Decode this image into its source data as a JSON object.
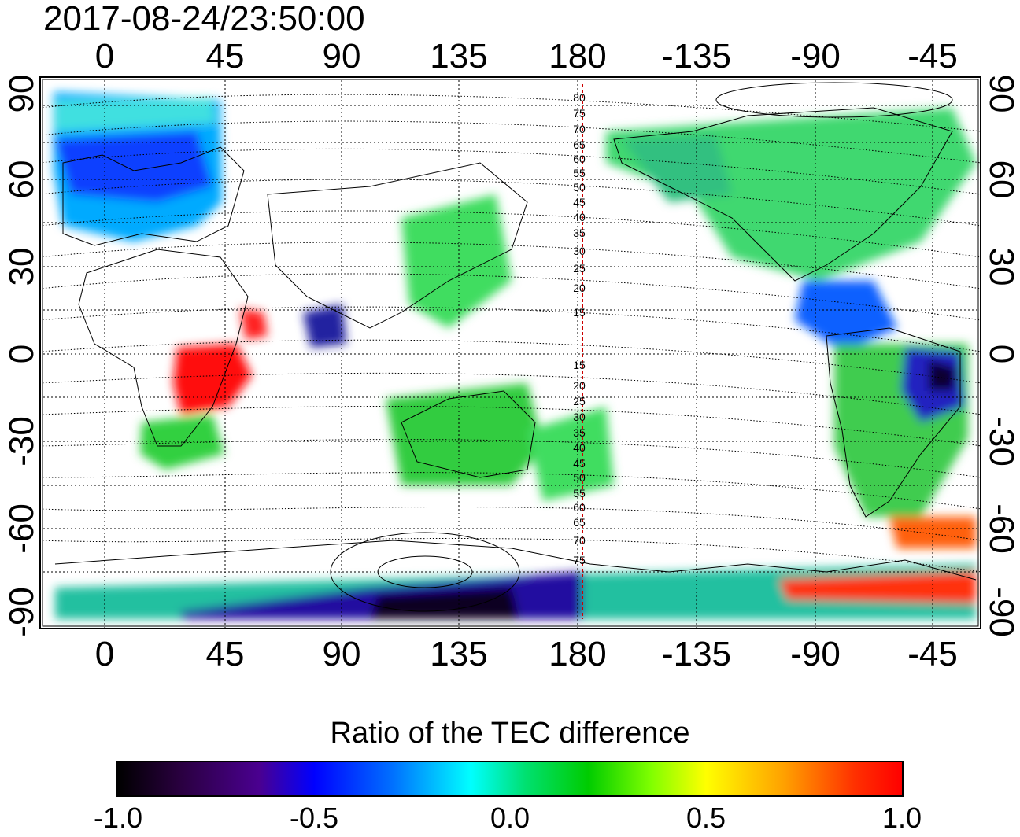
{
  "timestamp": "2017-08-24/23:50:00",
  "map": {
    "lon_ticks": [
      "0",
      "45",
      "90",
      "135",
      "180",
      "-135",
      "-90",
      "-45"
    ],
    "lat_ticks": [
      "90",
      "60",
      "30",
      "0",
      "-30",
      "-60",
      "-90"
    ],
    "mag_lat_labels_north": [
      "80",
      "75",
      "70",
      "65",
      "60",
      "55",
      "50",
      "45",
      "40",
      "35",
      "30",
      "25",
      "20",
      "15"
    ],
    "mag_lat_labels_south": [
      "15",
      "20",
      "25",
      "30",
      "35",
      "40",
      "45",
      "50",
      "55",
      "60",
      "65",
      "70",
      "75"
    ],
    "terminator_line_color": "#cc0000",
    "grid": true
  },
  "colorbar": {
    "title": "Ratio of the TEC difference",
    "labels": [
      "-1.0",
      "-0.5",
      "0.0",
      "0.5",
      "1.0"
    ],
    "range": [
      -1.0,
      1.0
    ],
    "colormap": [
      "#000000",
      "#4a0090",
      "#0000ff",
      "#00ffff",
      "#00cc00",
      "#ffff00",
      "#ff0000"
    ]
  }
}
